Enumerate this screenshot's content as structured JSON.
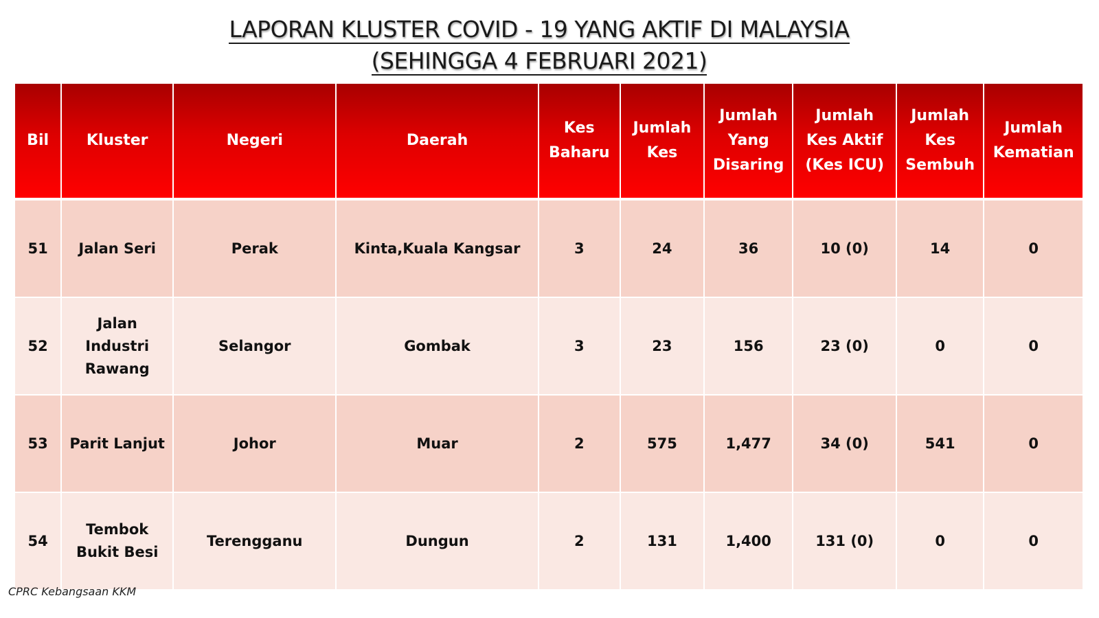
{
  "title": {
    "line1": "LAPORAN KLUSTER COVID - 19 YANG AKTIF DI MALAYSIA",
    "line2": "(SEHINGGA 4 FEBRUARI 2021)"
  },
  "table": {
    "headers": {
      "bil": "Bil",
      "kluster": "Kluster",
      "negeri": "Negeri",
      "daerah": "Daerah",
      "kes_baharu": "Kes\nBaharu",
      "jumlah_kes": "Jumlah\nKes",
      "jumlah_disaring": "Jumlah\nYang\nDisaring",
      "kes_aktif": "Jumlah\nKes Aktif\n(Kes ICU)",
      "kes_sembuh": "Jumlah\nKes\nSembuh",
      "kematian": "Jumlah\nKematian"
    },
    "rows": [
      {
        "bil": "51",
        "kluster": "Jalan Seri",
        "negeri": "Perak",
        "daerah": "Kinta,Kuala Kangsar",
        "kes_baharu": "3",
        "jumlah_kes": "24",
        "jumlah_disaring": "36",
        "kes_aktif": "10 (0)",
        "kes_sembuh": "14",
        "kematian": "0"
      },
      {
        "bil": "52",
        "kluster": "Jalan Industri Rawang",
        "negeri": "Selangor",
        "daerah": "Gombak",
        "kes_baharu": "3",
        "jumlah_kes": "23",
        "jumlah_disaring": "156",
        "kes_aktif": "23 (0)",
        "kes_sembuh": "0",
        "kematian": "0"
      },
      {
        "bil": "53",
        "kluster": "Parit Lanjut",
        "negeri": "Johor",
        "daerah": "Muar",
        "kes_baharu": "2",
        "jumlah_kes": "575",
        "jumlah_disaring": "1,477",
        "kes_aktif": "34 (0)",
        "kes_sembuh": "541",
        "kematian": "0"
      },
      {
        "bil": "54",
        "kluster": "Tembok Bukit Besi",
        "negeri": "Terengganu",
        "daerah": "Dungun",
        "kes_baharu": "2",
        "jumlah_kes": "131",
        "jumlah_disaring": "1,400",
        "kes_aktif": "131 (0)",
        "kes_sembuh": "0",
        "kematian": "0"
      }
    ]
  },
  "source": "CPRC Kebangsaan KKM",
  "colors": {
    "header_dark": "#a80000",
    "header_light": "#ff0000",
    "row_odd": "#f6d2c8",
    "row_even": "#fae8e3"
  }
}
